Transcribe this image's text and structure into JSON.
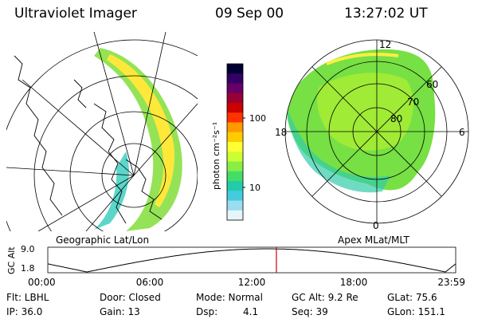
{
  "header": {
    "title": "Ultraviolet Imager",
    "date": "09 Sep 00",
    "time": "13:27:02 UT"
  },
  "colorbar": {
    "unit": "photon cm⁻²s⁻¹",
    "ticks": [
      "100",
      "10"
    ],
    "colors": [
      "#000033",
      "#330066",
      "#660066",
      "#990033",
      "#cc0000",
      "#ff3300",
      "#ff9900",
      "#ffcc00",
      "#ffff33",
      "#ccff33",
      "#88ee44",
      "#44dd66",
      "#22ccaa",
      "#44ccdd",
      "#99ddee",
      "#e6f5f8"
    ]
  },
  "left_map": {
    "label": "Geographic Lat/Lon"
  },
  "polar_plot": {
    "label": "Apex MLat/MLT",
    "mlt_labels": {
      "top": "12",
      "left": "18",
      "right": "6",
      "bottom": "0"
    },
    "lat_labels": [
      "60",
      "70",
      "80"
    ]
  },
  "gc_alt_chart": {
    "axis_title": "GC Alt",
    "y_ticks": [
      "9.0",
      "1.8"
    ],
    "x_ticks": [
      "00:00",
      "06:00",
      "12:00",
      "18:00",
      "23:59"
    ],
    "marker_color": "#cc0000",
    "marker_time_hours": 13.45,
    "y_range": [
      1.8,
      9.0
    ],
    "minima_hours": [
      2.3,
      23.4
    ],
    "maximum_hours": 12.9
  },
  "info": {
    "flt": "Flt: LBHL",
    "ip": "IP: 36.0",
    "door": "Door: Closed",
    "gain": "Gain: 13",
    "mode": "Mode: Normal",
    "dsp_label": "Dsp:",
    "dsp_value": "4.1",
    "gc_alt": "GC Alt: 9.2 Re",
    "seq": "Seq: 39",
    "glat": "GLat:  75.6",
    "glon": "GLon: 151.1"
  }
}
